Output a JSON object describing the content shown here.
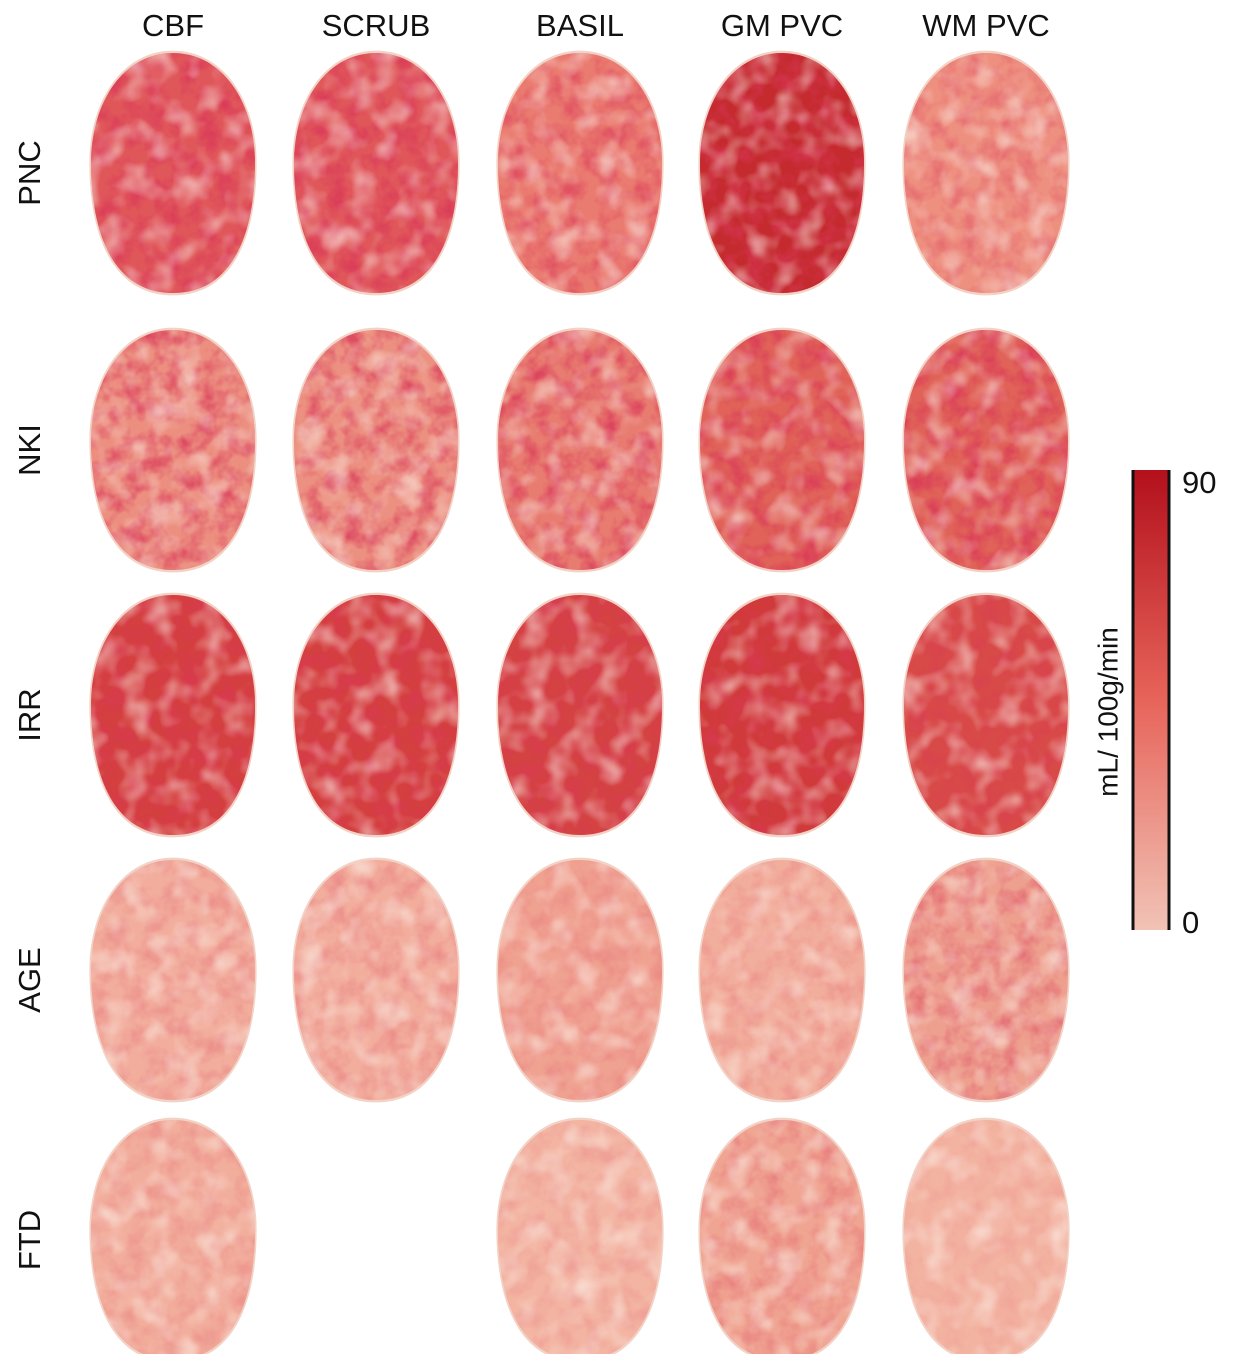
{
  "columns": [
    "CBF",
    "SCRUB",
    "BASIL",
    "GM PVC",
    "WM PVC"
  ],
  "rows": [
    "PNC",
    "NKI",
    "IRR",
    "AGE",
    "FTD"
  ],
  "colorbar": {
    "label": "mL/ 100g/min",
    "ticks": [
      90,
      0
    ]
  }
}
